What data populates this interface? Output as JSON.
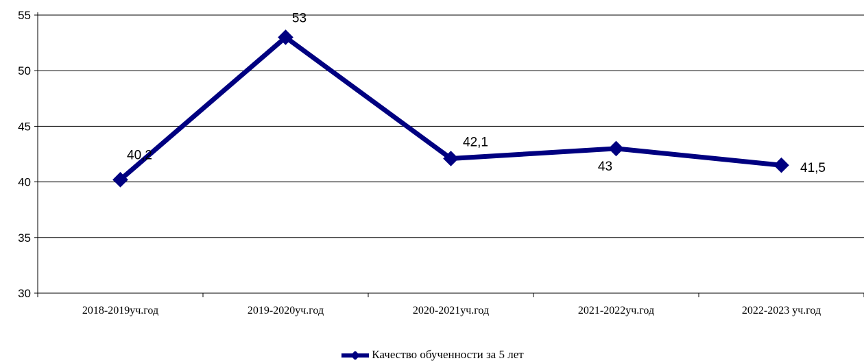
{
  "chart_data": {
    "type": "line",
    "categories": [
      "2018-2019уч.год",
      "2019-2020уч.год",
      "2020-2021уч.год",
      "2021-2022уч.год",
      "2022-2023 уч.год"
    ],
    "series": [
      {
        "name": "Качество обученности за 5 лет",
        "values": [
          40.2,
          53,
          42.1,
          43,
          41.5
        ],
        "data_labels": [
          "40,2",
          "53",
          "42,1",
          "43",
          "41,5"
        ],
        "color": "#000080"
      }
    ],
    "yticks": [
      "30",
      "35",
      "40",
      "45",
      "50",
      "55"
    ],
    "ylim": [
      30,
      55
    ],
    "grid": true,
    "legend_position": "bottom"
  }
}
